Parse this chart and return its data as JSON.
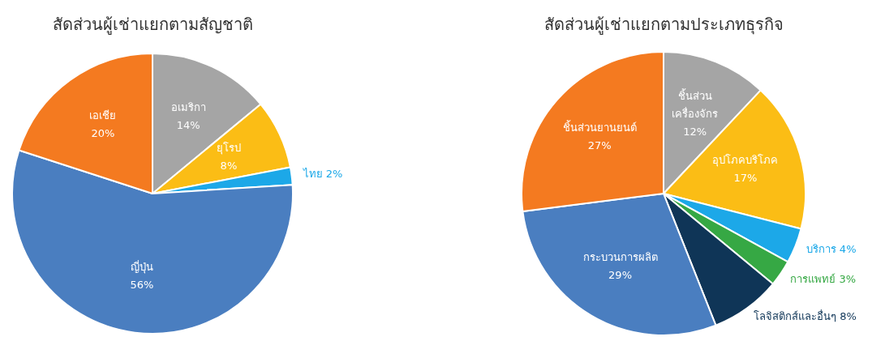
{
  "chart_data": [
    {
      "type": "pie",
      "title": "สัดส่วนผู้เช่าแยกตามสัญชาติ",
      "categories": [
        "อเมริกา",
        "ยุโรป",
        "ไทย",
        "ญี่ปุ่น",
        "เอเชีย"
      ],
      "values": [
        14,
        8,
        2,
        56,
        20
      ],
      "colors": [
        "#a5a5a5",
        "#fbbd15",
        "#1ca8e8",
        "#4a7ec0",
        "#f47a20"
      ],
      "value_labels": [
        "14%",
        "8%",
        "2%",
        "56%",
        "20%"
      ]
    },
    {
      "type": "pie",
      "title": "สัดส่วนผู้เช่าแยกตามประเภทธุรกิจ",
      "categories": [
        "ชิ้นส่วน เครื่องจักร",
        "อุปโภคบริโภค",
        "บริการ",
        "การแพทย์",
        "โลจิสติกส์และอื่นๆ",
        "กระบวนการผลิต",
        "ชิ้นส่วนยานยนต์"
      ],
      "values": [
        12,
        17,
        4,
        3,
        8,
        29,
        27
      ],
      "colors": [
        "#a5a5a5",
        "#fbbd15",
        "#1ca8e8",
        "#36a844",
        "#0f3557",
        "#4a7ec0",
        "#f47a20"
      ],
      "value_labels": [
        "12%",
        "17%",
        "4%",
        "3%",
        "8%",
        "29%",
        "27%"
      ]
    }
  ]
}
